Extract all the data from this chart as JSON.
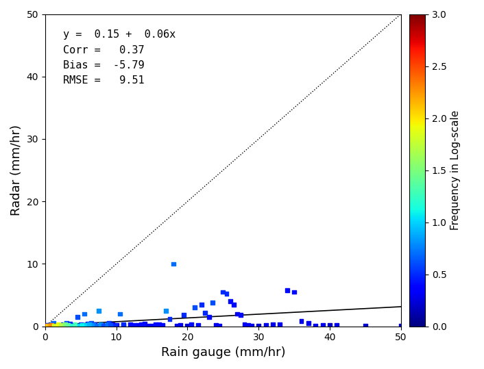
{
  "xlabel": "Rain gauge (mm/hr)",
  "ylabel": "Radar (mm/hr)",
  "colorbar_label": "Frequency in Log-scale",
  "xlim": [
    0,
    50
  ],
  "ylim": [
    0,
    50
  ],
  "xticks": [
    0,
    10,
    20,
    30,
    40,
    50
  ],
  "yticks": [
    0,
    10,
    20,
    30,
    40,
    50
  ],
  "annotation": "y =  0.15 +  0.06x\nCorr =   0.37\nBias =  -5.79\nRMSE =   9.51",
  "regression_intercept": 0.15,
  "regression_slope": 0.06,
  "colorbar_min": 0.0,
  "colorbar_max": 3.0,
  "colorbar_ticks": [
    0.0,
    0.5,
    1.0,
    1.5,
    2.0,
    2.5,
    3.0
  ],
  "scatter_points": [
    [
      0.1,
      0.05
    ],
    [
      0.2,
      0.1
    ],
    [
      0.3,
      0.15
    ],
    [
      0.5,
      0.2
    ],
    [
      0.8,
      0.1
    ],
    [
      1.0,
      0.3
    ],
    [
      1.2,
      0.5
    ],
    [
      1.5,
      0.2
    ],
    [
      2.0,
      0.1
    ],
    [
      2.5,
      0.3
    ],
    [
      3.0,
      0.5
    ],
    [
      3.5,
      0.4
    ],
    [
      4.0,
      0.2
    ],
    [
      4.5,
      1.5
    ],
    [
      5.0,
      0.3
    ],
    [
      5.5,
      2.0
    ],
    [
      6.0,
      0.4
    ],
    [
      6.5,
      0.5
    ],
    [
      7.0,
      0.3
    ],
    [
      7.5,
      2.5
    ],
    [
      8.0,
      0.2
    ],
    [
      8.5,
      0.1
    ],
    [
      9.0,
      0.5
    ],
    [
      9.5,
      0.3
    ],
    [
      10.0,
      0.2
    ],
    [
      10.5,
      2.0
    ],
    [
      11.0,
      0.1
    ],
    [
      12.0,
      0.3
    ],
    [
      13.0,
      0.2
    ],
    [
      14.0,
      0.4
    ],
    [
      15.0,
      0.1
    ],
    [
      16.0,
      0.3
    ],
    [
      17.0,
      2.5
    ],
    [
      18.0,
      10.0
    ],
    [
      19.0,
      0.2
    ],
    [
      20.0,
      0.1
    ],
    [
      21.0,
      3.0
    ],
    [
      22.0,
      3.5
    ],
    [
      23.0,
      1.5
    ],
    [
      24.0,
      0.2
    ],
    [
      25.0,
      5.5
    ],
    [
      26.0,
      4.0
    ],
    [
      27.0,
      2.0
    ],
    [
      28.0,
      0.3
    ],
    [
      30.0,
      0.1
    ],
    [
      32.0,
      0.3
    ],
    [
      35.0,
      5.5
    ],
    [
      36.0,
      0.8
    ],
    [
      40.0,
      0.2
    ],
    [
      50.0,
      0.1
    ],
    [
      0.05,
      0.02
    ],
    [
      0.15,
      0.08
    ],
    [
      0.4,
      0.05
    ],
    [
      0.6,
      0.12
    ],
    [
      0.9,
      0.18
    ],
    [
      1.3,
      0.08
    ],
    [
      1.8,
      0.25
    ],
    [
      2.2,
      0.15
    ],
    [
      2.8,
      0.35
    ],
    [
      3.2,
      0.18
    ],
    [
      3.8,
      0.12
    ],
    [
      4.2,
      0.28
    ],
    [
      4.8,
      0.08
    ],
    [
      5.2,
      0.22
    ],
    [
      5.8,
      0.15
    ],
    [
      6.2,
      0.32
    ],
    [
      6.8,
      0.18
    ],
    [
      7.2,
      0.08
    ],
    [
      7.8,
      0.25
    ],
    [
      8.2,
      0.12
    ],
    [
      8.8,
      0.32
    ],
    [
      9.2,
      0.18
    ],
    [
      9.8,
      0.08
    ],
    [
      11.0,
      0.25
    ],
    [
      12.5,
      0.15
    ],
    [
      13.5,
      0.28
    ],
    [
      14.5,
      0.12
    ],
    [
      15.5,
      0.35
    ],
    [
      16.5,
      0.18
    ],
    [
      17.5,
      1.2
    ],
    [
      18.5,
      0.08
    ],
    [
      19.5,
      1.8
    ],
    [
      20.5,
      0.25
    ],
    [
      21.5,
      0.15
    ],
    [
      22.5,
      2.2
    ],
    [
      23.5,
      3.8
    ],
    [
      24.5,
      0.12
    ],
    [
      25.5,
      5.2
    ],
    [
      26.5,
      3.5
    ],
    [
      27.5,
      1.8
    ],
    [
      28.5,
      0.22
    ],
    [
      29.0,
      0.08
    ],
    [
      31.0,
      0.18
    ],
    [
      33.0,
      0.28
    ],
    [
      34.0,
      5.8
    ],
    [
      37.0,
      0.55
    ],
    [
      38.0,
      0.12
    ],
    [
      39.0,
      0.18
    ],
    [
      41.0,
      0.15
    ],
    [
      45.0,
      0.08
    ]
  ],
  "scatter_colors": [
    0.3,
    0.3,
    0.4,
    0.5,
    0.4,
    0.6,
    0.7,
    0.5,
    0.4,
    0.5,
    0.6,
    0.5,
    0.4,
    0.6,
    0.5,
    0.7,
    0.5,
    0.6,
    0.5,
    0.8,
    0.4,
    0.3,
    0.5,
    0.4,
    0.3,
    0.7,
    0.3,
    0.4,
    0.3,
    0.4,
    0.3,
    0.4,
    0.8,
    0.7,
    0.3,
    0.2,
    0.6,
    0.5,
    0.4,
    0.3,
    0.5,
    0.4,
    0.3,
    0.3,
    0.2,
    0.3,
    0.4,
    0.3,
    0.2,
    0.2,
    2.5,
    2.5,
    2.0,
    2.2,
    2.3,
    1.8,
    1.9,
    1.7,
    1.5,
    1.4,
    1.2,
    1.3,
    1.0,
    1.1,
    1.0,
    0.9,
    0.8,
    0.7,
    0.8,
    0.6,
    0.7,
    0.6,
    0.5,
    0.5,
    0.4,
    0.4,
    0.3,
    0.4,
    0.4,
    0.5,
    0.3,
    0.5,
    0.4,
    0.4,
    0.5,
    0.6,
    0.3,
    0.5,
    0.4,
    0.4,
    0.3,
    0.3,
    0.3,
    0.3,
    0.4,
    0.3,
    0.3,
    0.3,
    0.3,
    0.2
  ]
}
